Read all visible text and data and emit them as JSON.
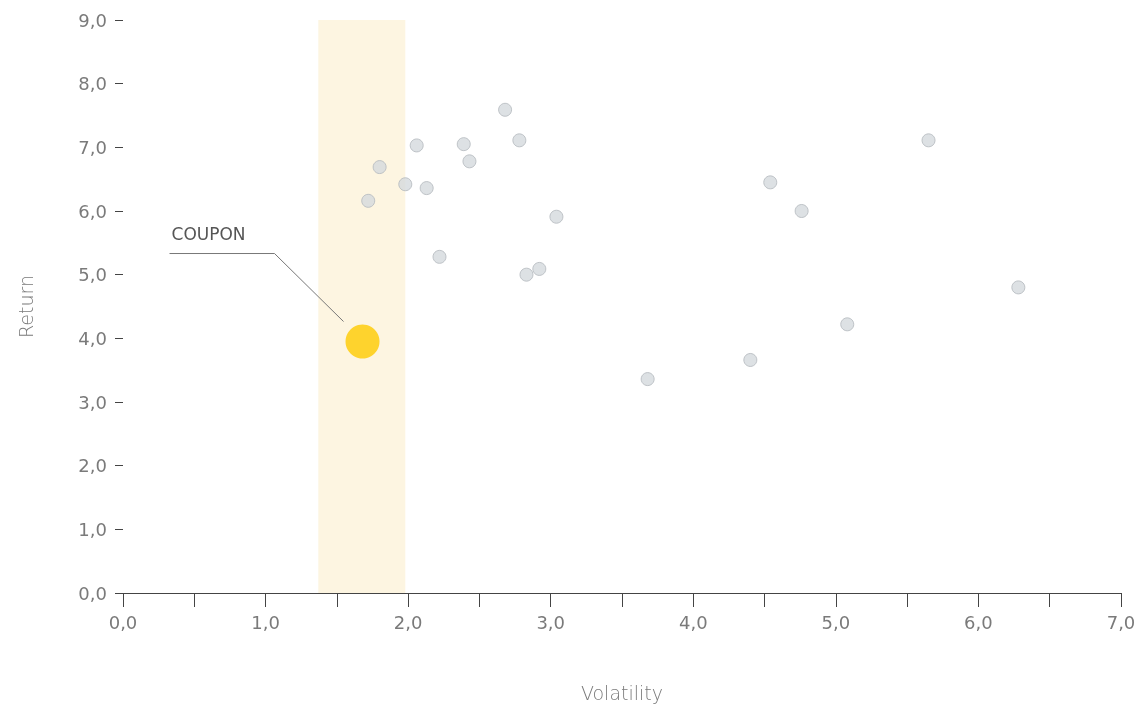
{
  "chart_data": {
    "type": "scatter",
    "xlabel": "Volatility",
    "ylabel": "Return",
    "xlim": [
      0,
      7
    ],
    "ylim": [
      0,
      9
    ],
    "xticks": [
      {
        "value": 0,
        "label": "0,0"
      },
      {
        "value": 0.5,
        "label": null
      },
      {
        "value": 1,
        "label": "1,0"
      },
      {
        "value": 1.5,
        "label": null
      },
      {
        "value": 2,
        "label": "2,0"
      },
      {
        "value": 2.5,
        "label": null
      },
      {
        "value": 3,
        "label": "3,0"
      },
      {
        "value": 3.5,
        "label": null
      },
      {
        "value": 4,
        "label": "4,0"
      },
      {
        "value": 4.5,
        "label": null
      },
      {
        "value": 5,
        "label": "5,0"
      },
      {
        "value": 5.5,
        "label": null
      },
      {
        "value": 6,
        "label": "6,0"
      },
      {
        "value": 6.5,
        "label": null
      },
      {
        "value": 7,
        "label": "7,0"
      }
    ],
    "yticks": [
      {
        "value": 0,
        "label": "0,0"
      },
      {
        "value": 1,
        "label": "1,0"
      },
      {
        "value": 2,
        "label": "2,0"
      },
      {
        "value": 3,
        "label": "3,0"
      },
      {
        "value": 4,
        "label": "4,0"
      },
      {
        "value": 5,
        "label": "5,0"
      },
      {
        "value": 6,
        "label": "6,0"
      },
      {
        "value": 7,
        "label": "7,0"
      },
      {
        "value": 8,
        "label": "8,0"
      },
      {
        "value": 9,
        "label": "9,0"
      }
    ],
    "grid": false,
    "marker": "circle",
    "bands": [
      {
        "axis": "x",
        "from": 1.37,
        "to": 1.98,
        "color": "#fdf5e1"
      }
    ],
    "series": [
      {
        "color": "#d5d9dd",
        "x": [
          1.72,
          1.8,
          1.98,
          2.06,
          2.13,
          2.39,
          2.43,
          2.22,
          2.68,
          2.78,
          2.83,
          2.92,
          3.04,
          3.68,
          4.4,
          4.54,
          4.76,
          5.08,
          5.65,
          6.28
        ],
        "values": [
          6.16,
          6.69,
          6.42,
          7.03,
          6.36,
          7.05,
          6.78,
          5.28,
          7.59,
          7.11,
          5.0,
          5.09,
          5.91,
          3.36,
          3.66,
          6.45,
          6.0,
          4.22,
          7.11,
          4.8
        ]
      },
      {
        "color": "#fecb00",
        "x": [
          1.68
        ],
        "values": [
          3.95
        ]
      }
    ],
    "annotations": [
      "COUPON"
    ]
  }
}
